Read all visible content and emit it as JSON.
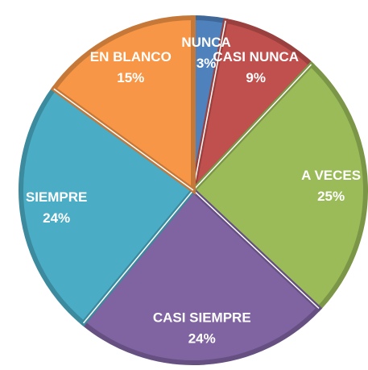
{
  "chart_data": {
    "type": "pie",
    "categories": [
      "NUNCA",
      "CASI NUNCA",
      "A VECES",
      "CASI SIEMPRE",
      "SIEMPRE",
      "EN BLANCO"
    ],
    "values": [
      3,
      9,
      25,
      24,
      24,
      15
    ],
    "value_labels": [
      "3%",
      "9%",
      "25%",
      "24%",
      "24%",
      "15%"
    ],
    "colors": [
      "#4f81bd",
      "#c0504d",
      "#9bbb59",
      "#8064a2",
      "#4bacc6",
      "#f79646"
    ]
  }
}
